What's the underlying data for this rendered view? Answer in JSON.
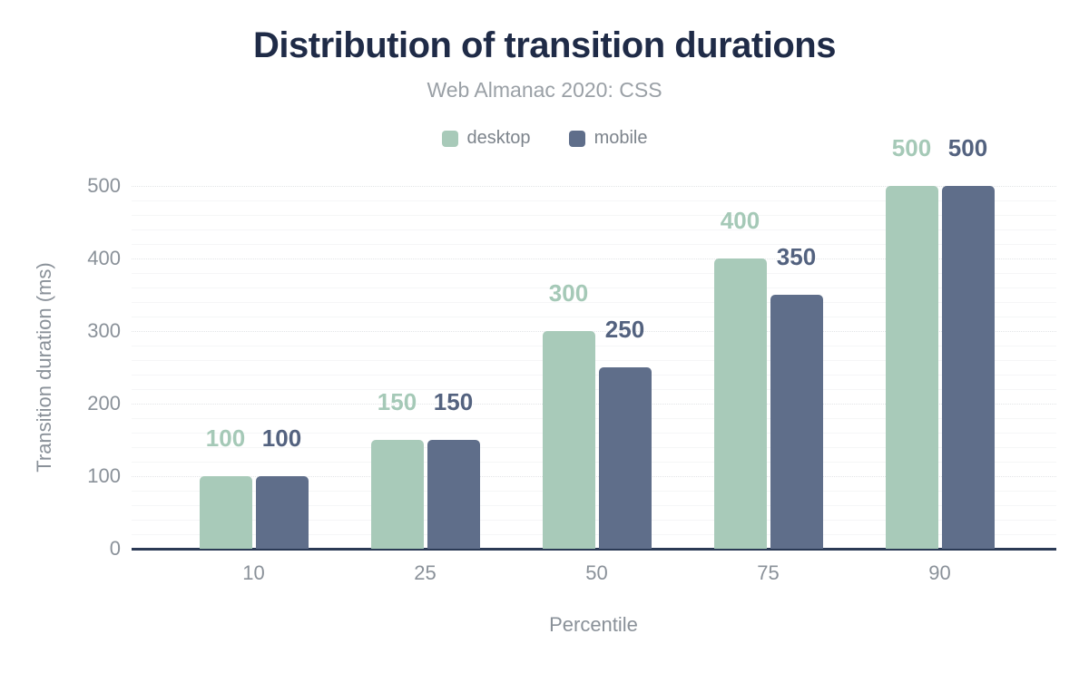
{
  "chart_data": {
    "type": "bar",
    "title": "Distribution of transition durations",
    "subtitle": "Web Almanac 2020: CSS",
    "xlabel": "Percentile",
    "ylabel": "Transition duration (ms)",
    "categories": [
      "10",
      "25",
      "50",
      "75",
      "90"
    ],
    "series": [
      {
        "name": "desktop",
        "color": "#a8cab9",
        "label_color": "#a5c9b7",
        "values": [
          100,
          150,
          300,
          400,
          500
        ]
      },
      {
        "name": "mobile",
        "color": "#5f6e8a",
        "label_color": "#53627f",
        "values": [
          100,
          150,
          250,
          350,
          500
        ]
      }
    ],
    "y_ticks": [
      0,
      100,
      200,
      300,
      400,
      500
    ],
    "ylim": [
      0,
      500
    ],
    "minor_grid_step": 20,
    "grid": "horizontal, major dotted + faint minor",
    "legend_position": "top-center",
    "value_labels": "above bars, colored per series"
  },
  "colors": {
    "title": "#1f2b47",
    "subtitle": "#9aa0a6",
    "axis_text": "#8a9199",
    "legend_text": "#7d848c",
    "axis_line": "#2b3a55",
    "background": "#ffffff"
  }
}
